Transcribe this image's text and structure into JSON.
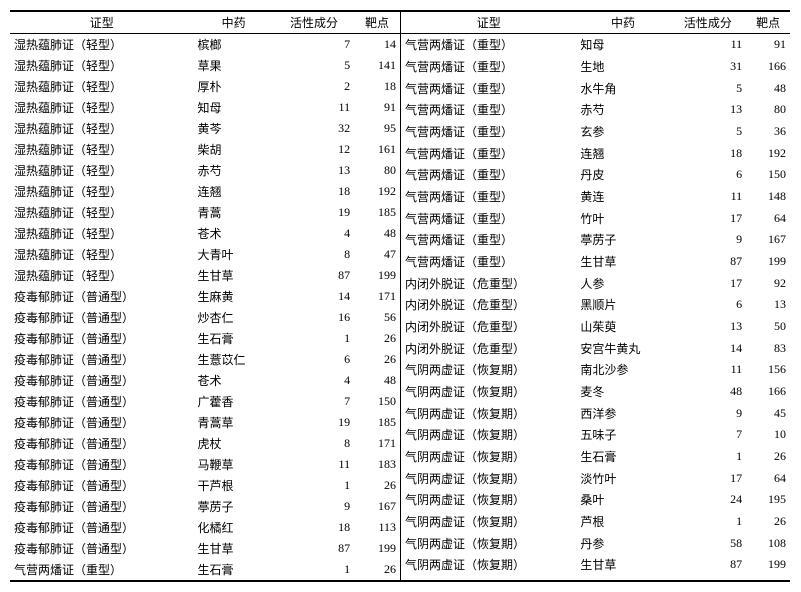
{
  "headers": [
    "证型",
    "中药",
    "活性成分",
    "靶点"
  ],
  "left": [
    [
      "湿热蕴肺证（轻型）",
      "槟榔",
      "7",
      "14"
    ],
    [
      "湿热蕴肺证（轻型）",
      "草果",
      "5",
      "141"
    ],
    [
      "湿热蕴肺证（轻型）",
      "厚朴",
      "2",
      "18"
    ],
    [
      "湿热蕴肺证（轻型）",
      "知母",
      "11",
      "91"
    ],
    [
      "湿热蕴肺证（轻型）",
      "黄芩",
      "32",
      "95"
    ],
    [
      "湿热蕴肺证（轻型）",
      "柴胡",
      "12",
      "161"
    ],
    [
      "湿热蕴肺证（轻型）",
      "赤芍",
      "13",
      "80"
    ],
    [
      "湿热蕴肺证（轻型）",
      "连翘",
      "18",
      "192"
    ],
    [
      "湿热蕴肺证（轻型）",
      "青蒿",
      "19",
      "185"
    ],
    [
      "湿热蕴肺证（轻型）",
      "苍术",
      "4",
      "48"
    ],
    [
      "湿热蕴肺证（轻型）",
      "大青叶",
      "8",
      "47"
    ],
    [
      "湿热蕴肺证（轻型）",
      "生甘草",
      "87",
      "199"
    ],
    [
      "疫毒郁肺证（普通型）",
      "生麻黄",
      "14",
      "171"
    ],
    [
      "疫毒郁肺证（普通型）",
      "炒杏仁",
      "16",
      "56"
    ],
    [
      "疫毒郁肺证（普通型）",
      "生石膏",
      "1",
      "26"
    ],
    [
      "疫毒郁肺证（普通型）",
      "生薏苡仁",
      "6",
      "26"
    ],
    [
      "疫毒郁肺证（普通型）",
      "苍术",
      "4",
      "48"
    ],
    [
      "疫毒郁肺证（普通型）",
      "广藿香",
      "7",
      "150"
    ],
    [
      "疫毒郁肺证（普通型）",
      "青蒿草",
      "19",
      "185"
    ],
    [
      "疫毒郁肺证（普通型）",
      "虎杖",
      "8",
      "171"
    ],
    [
      "疫毒郁肺证（普通型）",
      "马鞭草",
      "11",
      "183"
    ],
    [
      "疫毒郁肺证（普通型）",
      "干芦根",
      "1",
      "26"
    ],
    [
      "疫毒郁肺证（普通型）",
      "葶苈子",
      "9",
      "167"
    ],
    [
      "疫毒郁肺证（普通型）",
      "化橘红",
      "18",
      "113"
    ],
    [
      "疫毒郁肺证（普通型）",
      "生甘草",
      "87",
      "199"
    ],
    [
      "气营两燔证（重型）",
      "生石膏",
      "1",
      "26"
    ]
  ],
  "right": [
    [
      "气营两燔证（重型）",
      "知母",
      "11",
      "91"
    ],
    [
      "气营两燔证（重型）",
      "生地",
      "31",
      "166"
    ],
    [
      "气营两燔证（重型）",
      "水牛角",
      "5",
      "48"
    ],
    [
      "气营两燔证（重型）",
      "赤芍",
      "13",
      "80"
    ],
    [
      "气营两燔证（重型）",
      "玄参",
      "5",
      "36"
    ],
    [
      "气营两燔证（重型）",
      "连翘",
      "18",
      "192"
    ],
    [
      "气营两燔证（重型）",
      "丹皮",
      "6",
      "150"
    ],
    [
      "气营两燔证（重型）",
      "黄连",
      "11",
      "148"
    ],
    [
      "气营两燔证（重型）",
      "竹叶",
      "17",
      "64"
    ],
    [
      "气营两燔证（重型）",
      "葶苈子",
      "9",
      "167"
    ],
    [
      "气营两燔证（重型）",
      "生甘草",
      "87",
      "199"
    ],
    [
      "内闭外脱证（危重型）",
      "人参",
      "17",
      "92"
    ],
    [
      "内闭外脱证（危重型）",
      "黑顺片",
      "6",
      "13"
    ],
    [
      "内闭外脱证（危重型）",
      "山茱萸",
      "13",
      "50"
    ],
    [
      "内闭外脱证（危重型）",
      "安宫牛黄丸",
      "14",
      "83"
    ],
    [
      "气阴两虚证（恢复期）",
      "南北沙参",
      "11",
      "156"
    ],
    [
      "气阴两虚证（恢复期）",
      "麦冬",
      "48",
      "166"
    ],
    [
      "气阴两虚证（恢复期）",
      "西洋参",
      "9",
      "45"
    ],
    [
      "气阴两虚证（恢复期）",
      "五味子",
      "7",
      "10"
    ],
    [
      "气阴两虚证（恢复期）",
      "生石膏",
      "1",
      "26"
    ],
    [
      "气阴两虚证（恢复期）",
      "淡竹叶",
      "17",
      "64"
    ],
    [
      "气阴两虚证（恢复期）",
      "桑叶",
      "24",
      "195"
    ],
    [
      "气阴两虚证（恢复期）",
      "芦根",
      "1",
      "26"
    ],
    [
      "气阴两虚证（恢复期）",
      "丹参",
      "58",
      "108"
    ],
    [
      "气阴两虚证（恢复期）",
      "生甘草",
      "87",
      "199"
    ],
    [
      "",
      "",
      "",
      ""
    ]
  ]
}
